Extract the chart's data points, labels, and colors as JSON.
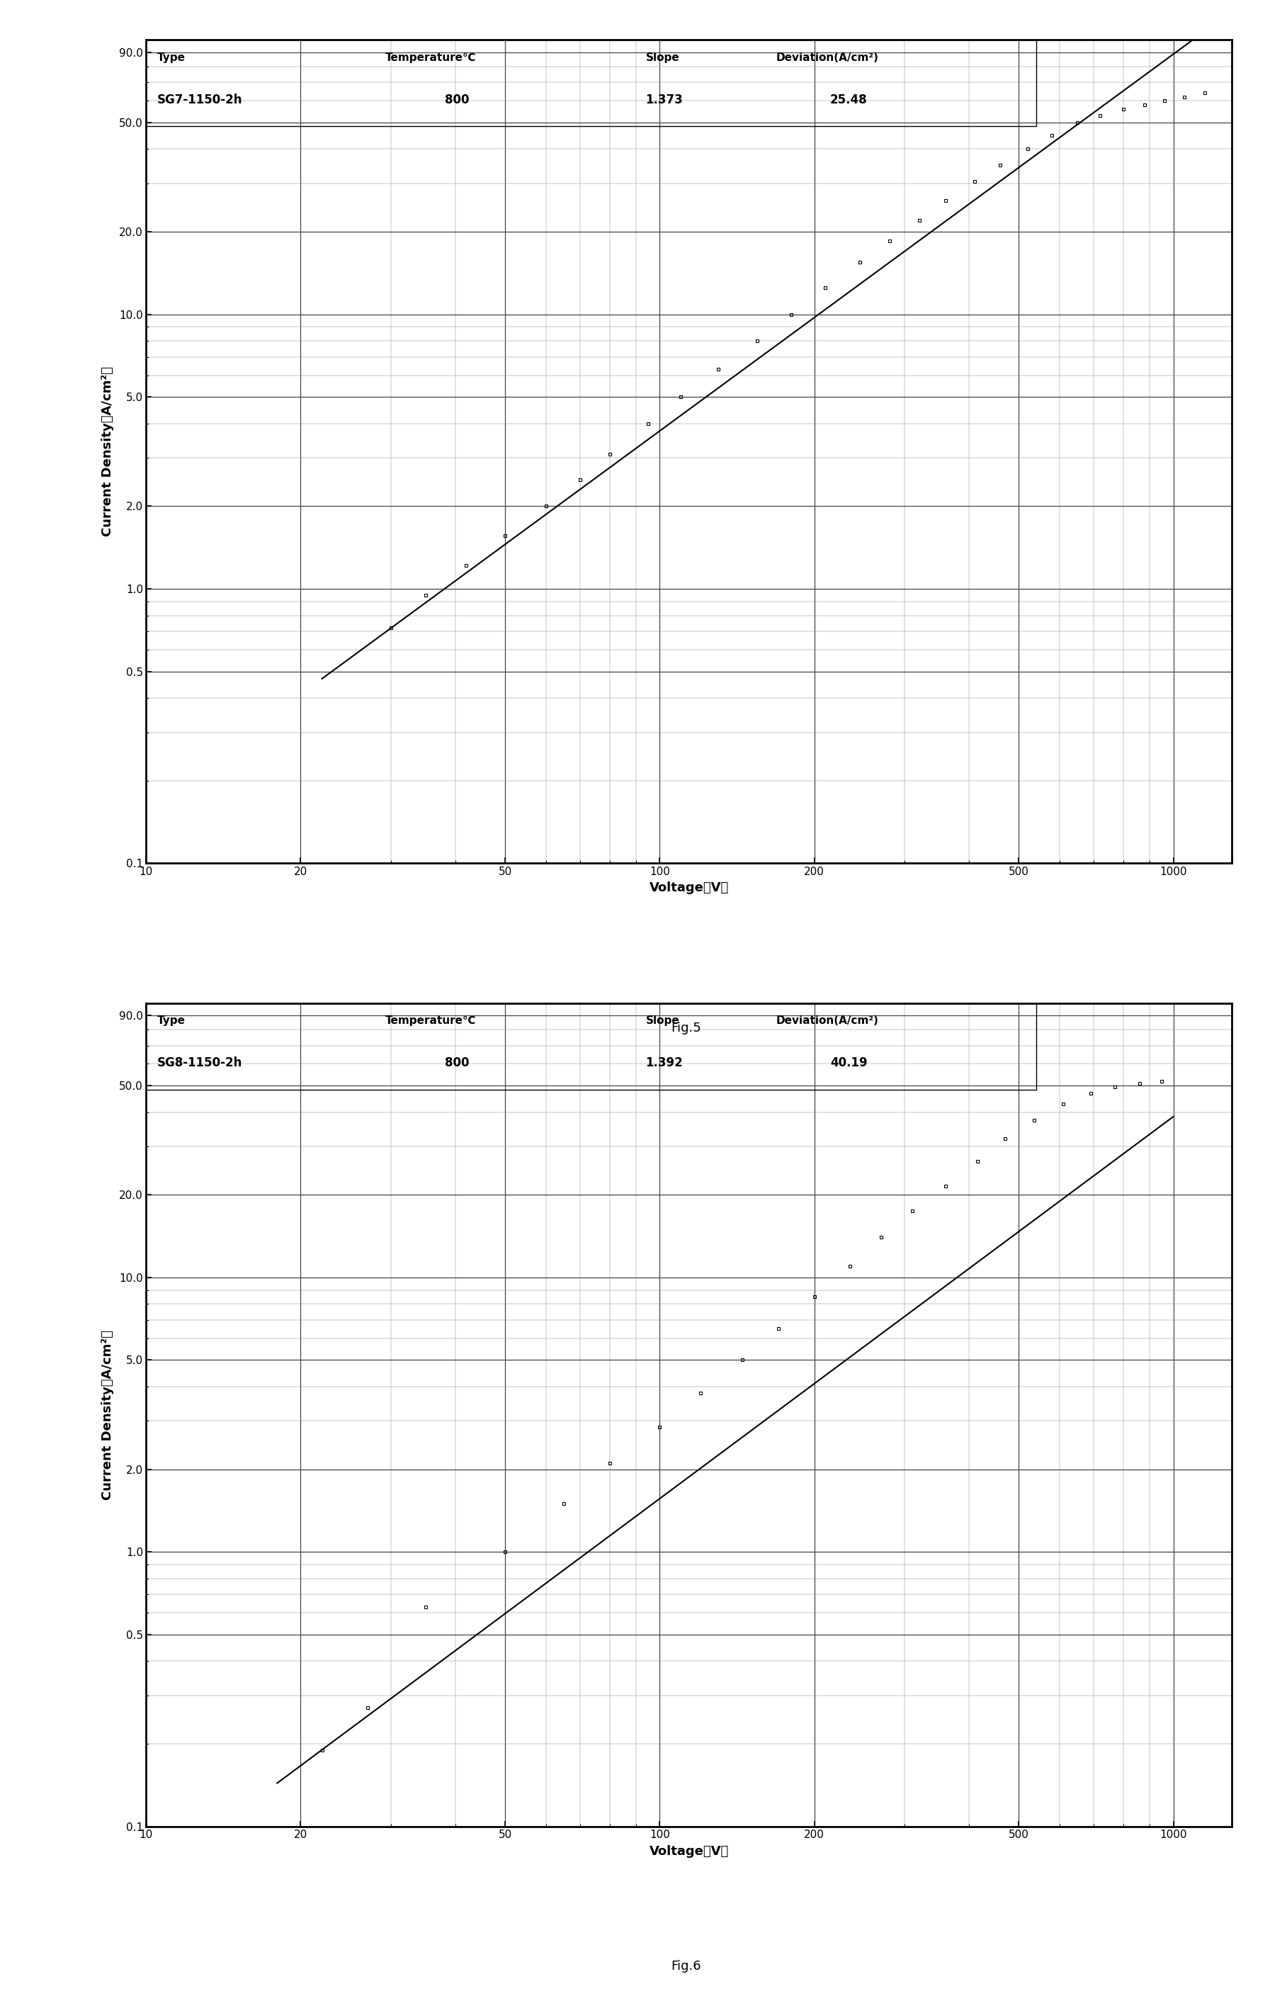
{
  "fig5": {
    "type_value": "SG7-1150-2h",
    "temp_value": "800",
    "slope_value": "1.373",
    "dev_value": "25.48",
    "fig_label": "Fig.5",
    "xlim": [
      10,
      1300
    ],
    "ylim": [
      0.1,
      100
    ],
    "slope": 1.373,
    "anchor_x": 30.0,
    "anchor_y": 0.72,
    "line_x_start": 22.0,
    "line_x_end": 1200.0,
    "data_x": [
      30,
      35,
      42,
      50,
      60,
      70,
      80,
      95,
      110,
      130,
      155,
      180,
      210,
      245,
      280,
      320,
      360,
      410,
      460,
      520,
      580,
      650,
      720,
      800,
      880,
      960,
      1050,
      1150
    ],
    "data_y": [
      0.72,
      0.95,
      1.22,
      1.56,
      2.0,
      2.5,
      3.1,
      4.0,
      5.0,
      6.3,
      8.0,
      10.0,
      12.5,
      15.5,
      18.5,
      22.0,
      26.0,
      30.5,
      35.0,
      40.0,
      45.0,
      50.0,
      53.0,
      56.0,
      58.0,
      60.0,
      62.0,
      64.0
    ]
  },
  "fig6": {
    "type_value": "SG8-1150-2h",
    "temp_value": "800",
    "slope_value": "1.392",
    "dev_value": "40.19",
    "fig_label": "Fig.6",
    "xlim": [
      10,
      1300
    ],
    "ylim": [
      0.1,
      100
    ],
    "slope": 1.392,
    "anchor_x": 22.0,
    "anchor_y": 0.19,
    "line_x_start": 18.0,
    "line_x_end": 1000.0,
    "data_x": [
      22,
      27,
      35,
      50,
      65,
      80,
      100,
      120,
      145,
      170,
      200,
      235,
      270,
      310,
      360,
      415,
      470,
      535,
      610,
      690,
      770,
      860,
      950
    ],
    "data_y": [
      0.19,
      0.27,
      0.63,
      1.0,
      1.5,
      2.1,
      2.85,
      3.8,
      5.0,
      6.5,
      8.5,
      11.0,
      14.0,
      17.5,
      21.5,
      26.5,
      32.0,
      37.5,
      43.0,
      47.0,
      49.5,
      51.0,
      52.0
    ]
  },
  "background_color": "#ffffff"
}
